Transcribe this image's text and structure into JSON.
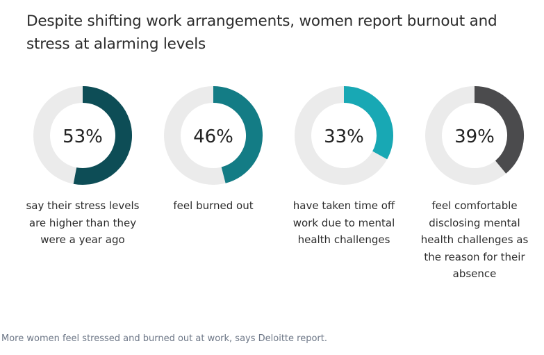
{
  "title": "Despite shifting work arrangements, women report burnout and stress at alarming levels",
  "caption": "More women feel stressed and burned out at work, says Deloitte report.",
  "chart_data": {
    "type": "pie",
    "variant": "donut",
    "track_color": "#ebebeb",
    "items": [
      {
        "value": 53,
        "label": "53%",
        "description": "say their stress levels are higher than they were a year ago",
        "color": "#0d4d56"
      },
      {
        "value": 46,
        "label": "46%",
        "description": "feel burned out",
        "color": "#137c85"
      },
      {
        "value": 33,
        "label": "33%",
        "description": "have taken time off work due to mental health challenges",
        "color": "#18a8b4"
      },
      {
        "value": 39,
        "label": "39%",
        "description": "feel comfortable disclosing mental health challenges as the reason for their absence",
        "color": "#4b4b4d"
      }
    ]
  }
}
